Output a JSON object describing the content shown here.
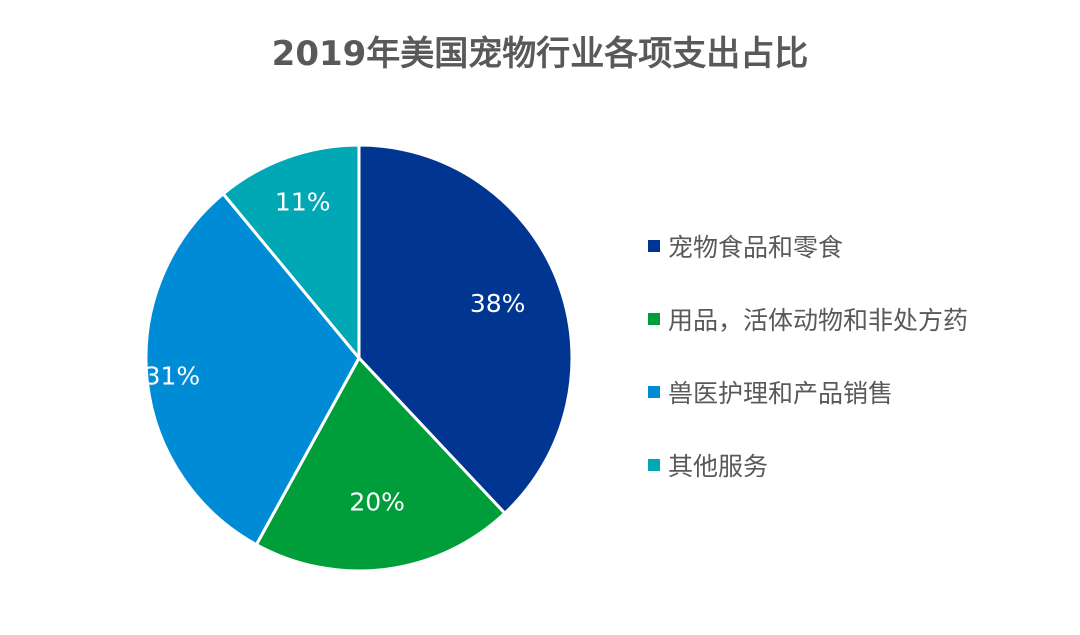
{
  "title": "2019年美国宠物行业各项支出占比",
  "chart_data": {
    "type": "pie",
    "title": "2019年美国宠物行业各项支出占比",
    "categories": [
      "宠物食品和零食",
      "用品，活体动物和非处方药",
      "兽医护理和产品销售",
      "其他服务"
    ],
    "values": [
      38,
      20,
      31,
      11
    ],
    "labels": [
      "38%",
      "20%",
      "31%",
      "11%"
    ],
    "colors": [
      "#003591",
      "#009E3A",
      "#008BD6",
      "#00A7B5"
    ],
    "start_angle": "12 o'clock, clockwise",
    "legend_position": "right"
  },
  "legend": {
    "items": [
      {
        "label": "宠物食品和零食",
        "color": "#003591"
      },
      {
        "label": "用品，活体动物和非处方药",
        "color": "#009E3A"
      },
      {
        "label": "兽医护理和产品销售",
        "color": "#008BD6"
      },
      {
        "label": "其他服务",
        "color": "#00A7B5"
      }
    ]
  }
}
